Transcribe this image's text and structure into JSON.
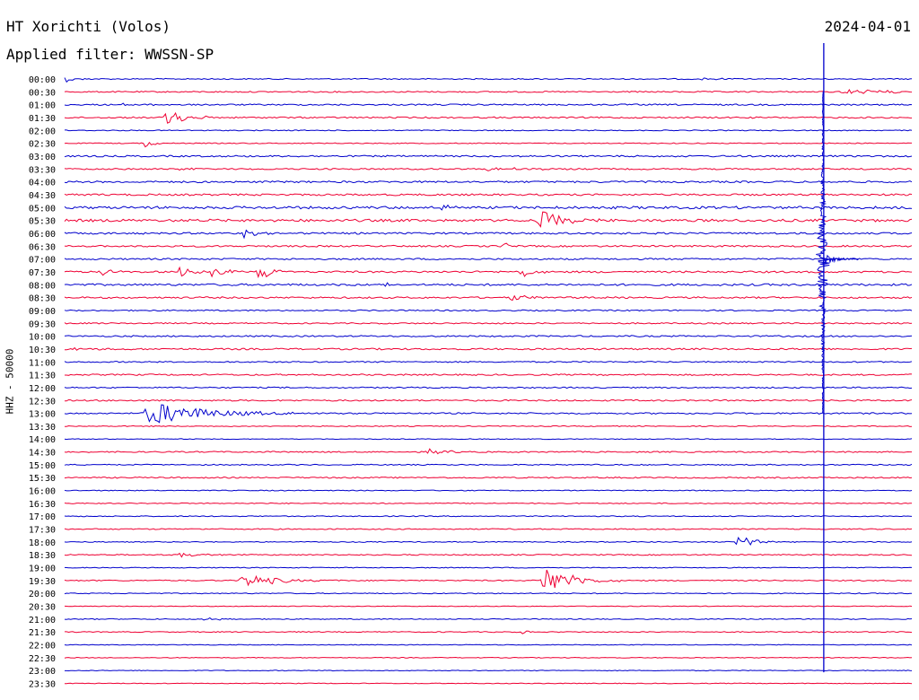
{
  "header": {
    "station": "HT Xorichti (Volos)",
    "filter": "Applied filter: WWSSN-SP",
    "date": "2024-04-01"
  },
  "chart_data": {
    "type": "line",
    "title": "HT Xorichti (Volos)",
    "subtitle": "Applied filter: WWSSN-SP",
    "date": "2024-04-01",
    "ylabel": "HHZ - 50000",
    "xlabel": "",
    "row_duration_minutes": 30,
    "grid": false,
    "colors": {
      "even_row": "#0000cc",
      "odd_row": "#ee0033",
      "text": "#000000"
    },
    "rows": [
      {
        "time": "00:00",
        "noise": 0.6,
        "events": [
          {
            "x": 0.0,
            "amp": 4,
            "dur": 0.01
          },
          {
            "x": 0.75,
            "amp": 1.5,
            "dur": 0.02
          }
        ]
      },
      {
        "time": "00:30",
        "noise": 0.7,
        "events": [
          {
            "x": 0.92,
            "amp": 3,
            "dur": 0.05
          }
        ]
      },
      {
        "time": "01:00",
        "noise": 0.8,
        "events": [
          {
            "x": 0.07,
            "amp": 1.5,
            "dur": 0.03
          }
        ]
      },
      {
        "time": "01:30",
        "noise": 0.8,
        "events": [
          {
            "x": 0.12,
            "amp": 10,
            "dur": 0.02
          }
        ]
      },
      {
        "time": "02:00",
        "noise": 0.5,
        "events": []
      },
      {
        "time": "02:30",
        "noise": 0.5,
        "events": [
          {
            "x": 0.095,
            "amp": 5,
            "dur": 0.01
          }
        ]
      },
      {
        "time": "03:00",
        "noise": 0.9,
        "events": []
      },
      {
        "time": "03:30",
        "noise": 0.8,
        "events": [
          {
            "x": 0.135,
            "amp": 3,
            "dur": 0.01
          },
          {
            "x": 0.5,
            "amp": 2,
            "dur": 0.04
          }
        ]
      },
      {
        "time": "04:00",
        "noise": 1.0,
        "events": []
      },
      {
        "time": "04:30",
        "noise": 1.0,
        "events": []
      },
      {
        "time": "05:00",
        "noise": 1.4,
        "events": [
          {
            "x": 0.445,
            "amp": 3,
            "dur": 0.02
          }
        ]
      },
      {
        "time": "05:30",
        "noise": 1.4,
        "events": [
          {
            "x": 0.56,
            "amp": 12,
            "dur": 0.025
          }
        ]
      },
      {
        "time": "06:00",
        "noise": 1.0,
        "events": [
          {
            "x": 0.213,
            "amp": 8,
            "dur": 0.01
          }
        ]
      },
      {
        "time": "06:30",
        "noise": 0.9,
        "events": [
          {
            "x": 0.52,
            "amp": 8,
            "dur": 0.005
          }
        ]
      },
      {
        "time": "07:00",
        "noise": 0.9,
        "events": []
      },
      {
        "time": "07:30",
        "noise": 1.0,
        "events": [
          {
            "x": 0.045,
            "amp": 4,
            "dur": 0.01
          },
          {
            "x": 0.135,
            "amp": 5,
            "dur": 0.015
          },
          {
            "x": 0.175,
            "amp": 9,
            "dur": 0.012
          },
          {
            "x": 0.23,
            "amp": 10,
            "dur": 0.015
          },
          {
            "x": 0.54,
            "amp": 8,
            "dur": 0.01
          }
        ]
      },
      {
        "time": "08:00",
        "noise": 1.1,
        "events": [
          {
            "x": 0.38,
            "amp": 3,
            "dur": 0.01
          }
        ]
      },
      {
        "time": "08:30",
        "noise": 0.9,
        "events": [
          {
            "x": 0.525,
            "amp": 3,
            "dur": 0.03
          }
        ]
      },
      {
        "time": "09:00",
        "noise": 0.7,
        "events": []
      },
      {
        "time": "09:30",
        "noise": 0.7,
        "events": []
      },
      {
        "time": "10:00",
        "noise": 0.8,
        "events": []
      },
      {
        "time": "10:30",
        "noise": 0.9,
        "events": [
          {
            "x": 0.01,
            "amp": 2,
            "dur": 0.02
          }
        ]
      },
      {
        "time": "11:00",
        "noise": 0.7,
        "events": []
      },
      {
        "time": "11:30",
        "noise": 0.8,
        "events": []
      },
      {
        "time": "12:00",
        "noise": 0.7,
        "events": []
      },
      {
        "time": "12:30",
        "noise": 0.8,
        "events": []
      },
      {
        "time": "13:00",
        "noise": 0.8,
        "events": [
          {
            "x": 0.098,
            "amp": 15,
            "dur": 0.06
          }
        ]
      },
      {
        "time": "13:30",
        "noise": 0.5,
        "events": []
      },
      {
        "time": "14:00",
        "noise": 0.4,
        "events": []
      },
      {
        "time": "14:30",
        "noise": 0.7,
        "events": [
          {
            "x": 0.43,
            "amp": 3,
            "dur": 0.02
          }
        ]
      },
      {
        "time": "15:00",
        "noise": 0.6,
        "events": []
      },
      {
        "time": "15:30",
        "noise": 0.7,
        "events": []
      },
      {
        "time": "16:00",
        "noise": 0.5,
        "events": []
      },
      {
        "time": "16:30",
        "noise": 0.5,
        "events": []
      },
      {
        "time": "17:00",
        "noise": 0.5,
        "events": []
      },
      {
        "time": "17:30",
        "noise": 0.6,
        "events": []
      },
      {
        "time": "18:00",
        "noise": 0.5,
        "events": [
          {
            "x": 0.795,
            "amp": 10,
            "dur": 0.015
          }
        ]
      },
      {
        "time": "18:30",
        "noise": 0.6,
        "events": [
          {
            "x": 0.135,
            "amp": 3,
            "dur": 0.02
          }
        ]
      },
      {
        "time": "19:00",
        "noise": 0.5,
        "events": []
      },
      {
        "time": "19:30",
        "noise": 0.6,
        "events": [
          {
            "x": 0.21,
            "amp": 8,
            "dur": 0.04
          },
          {
            "x": 0.565,
            "amp": 18,
            "dur": 0.03
          }
        ]
      },
      {
        "time": "20:00",
        "noise": 0.5,
        "events": []
      },
      {
        "time": "20:30",
        "noise": 0.4,
        "events": []
      },
      {
        "time": "21:00",
        "noise": 0.5,
        "events": [
          {
            "x": 0.165,
            "amp": 2,
            "dur": 0.02
          }
        ]
      },
      {
        "time": "21:30",
        "noise": 0.5,
        "events": [
          {
            "x": 0.54,
            "amp": 2,
            "dur": 0.01
          }
        ]
      },
      {
        "time": "22:00",
        "noise": 0.4,
        "events": []
      },
      {
        "time": "22:30",
        "noise": 0.4,
        "events": []
      },
      {
        "time": "23:00",
        "noise": 0.4,
        "events": []
      },
      {
        "time": "23:30",
        "noise": 0.4,
        "events": []
      }
    ],
    "major_event": {
      "row_start": "00:00",
      "row_end": "23:00",
      "x": 0.895,
      "peak_row": "07:00"
    }
  }
}
